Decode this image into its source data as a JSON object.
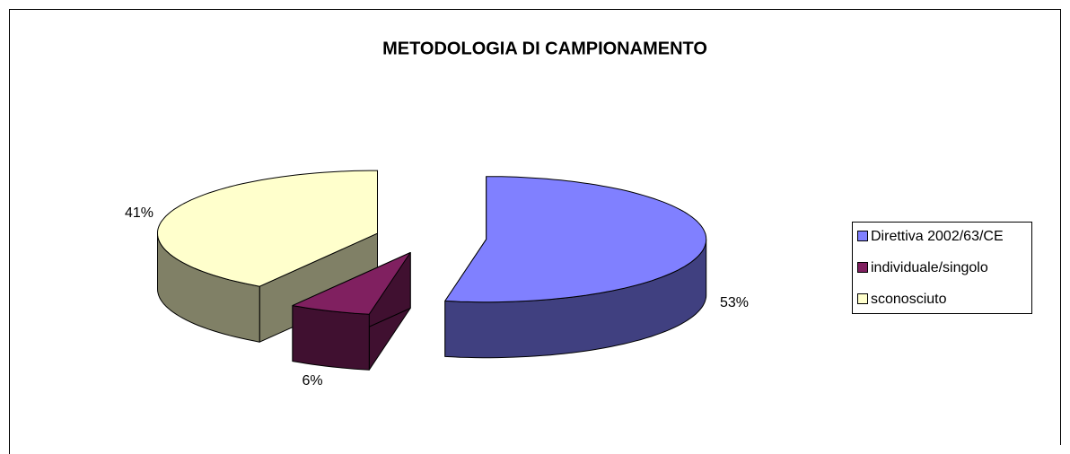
{
  "chart_data": {
    "type": "pie3d",
    "title": "METODOLOGIA DI CAMPIONAMENTO",
    "categories": [
      "Direttiva 2002/63/CE",
      "individuale/singolo",
      "sconosciuto"
    ],
    "values": [
      53,
      6,
      41
    ],
    "value_labels": [
      "53%",
      "6%",
      "41%"
    ],
    "colors": [
      "#8080ff",
      "#802060",
      "#ffffcc"
    ],
    "legend": "right"
  }
}
